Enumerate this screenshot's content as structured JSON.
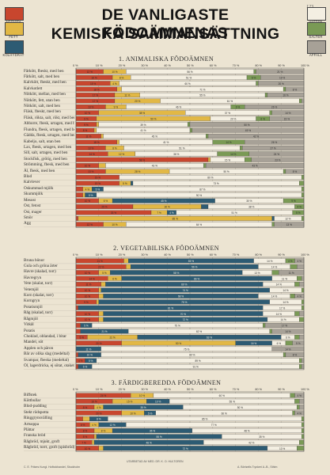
{
  "poster": {
    "title_line1": "DE VANLIGASTE FÖDOÄMNENAS",
    "title_line2": "KEMISKA SAMMANSÄTTNING",
    "stamp": "123",
    "legend": [
      {
        "label": "ÄGGVITA",
        "color": "#c8462e",
        "side": "left"
      },
      {
        "label": "FETT",
        "color": "#e2b845",
        "side": "left"
      },
      {
        "label": "KOLHYDRAT",
        "color": "#2d5b73",
        "side": "left"
      },
      {
        "label": "VATTEN",
        "color": "#f4efe2",
        "side": "right"
      },
      {
        "label": "SALTER",
        "color": "#7a9a55",
        "side": "right"
      },
      {
        "label": "AFFALL",
        "color": "#a7a197",
        "side": "right"
      }
    ],
    "footer_left": "C. E. Fritzes Kungl. Hofbokhandel, Stockholm",
    "footer_center": "UTARBETAD AV MED. DR. K. O. HULTGREN",
    "footer_right": "A. Börtzells Tryckeri A.-B., Sthlm"
  },
  "chart_data": {
    "type": "bar",
    "stacked": true,
    "xlim": [
      0,
      100
    ],
    "tick_labels": [
      "0 %",
      "10 %",
      "20 %",
      "30 %",
      "40 %",
      "50 %",
      "60 %",
      "70 %",
      "80 %",
      "90 %",
      "100 %"
    ],
    "series_order": [
      "ÄGGVITA",
      "FETT",
      "KOLHYDRAT",
      "VATTEN",
      "SALTER",
      "AFFALL"
    ],
    "sections": [
      {
        "title": "1. ANIMALISKA FÖDOÄMNEN",
        "rows": [
          {
            "label": "Fårkött, fbeskt, med ben",
            "values": [
              12,
              10,
              0,
              56,
              1,
              21
            ]
          },
          {
            "label": "Fårkött, salt, med ben",
            "values": [
              16,
              8,
              0,
              51,
              6,
              19
            ]
          },
          {
            "label": "Kalvkött, fbeskt, med ben",
            "values": [
              15,
              4,
              0,
              60,
              1,
              20
            ]
          },
          {
            "label": "Kalvkotlett",
            "values": [
              18,
              2,
              0,
              71,
              1,
              8
            ]
          },
          {
            "label": "Nötkött, mellan, med ben",
            "values": [
              17,
              11,
              0,
              55,
              1,
              16
            ]
          },
          {
            "label": "Nötkött, fett, utan ben",
            "values": [
              17,
              20,
              0,
              61,
              1,
              1
            ]
          },
          {
            "label": "Nötkött, salt, med ben",
            "values": [
              13,
              9,
              0,
              46,
              6,
              26
            ]
          },
          {
            "label": "Fläsk, fbeskt, med ben",
            "values": [
              10,
              38,
              0,
              37,
              1,
              14
            ]
          },
          {
            "label": "Fläsk, rökta, salt, rökt, med ben",
            "values": [
              9,
              50,
              0,
              20,
              6,
              15
            ]
          },
          {
            "label": "Abborre, fbesk, urtagen, med ben",
            "values": [
              9,
              1,
              0,
              39,
              1,
              50
            ]
          },
          {
            "label": "Flundra, fbesk, urtagen, med ben",
            "values": [
              8,
              1,
              0,
              41,
              1,
              49
            ]
          },
          {
            "label": "Gädda, fbesk, urtagen, med ben",
            "values": [
              11,
              1,
              0,
              45,
              1,
              42
            ]
          },
          {
            "label": "Kabeljo, salt, utan ben",
            "values": [
              18,
              1,
              0,
              41,
              14,
              26
            ]
          },
          {
            "label": "Lax, fbesk, urtagen, med ben",
            "values": [
              13,
              8,
              0,
              51,
              1,
              27
            ]
          },
          {
            "label": "Sill, salt, urtagen, med ben",
            "values": [
              14,
              12,
              0,
              36,
              14,
              24
            ]
          },
          {
            "label": "Stockfisk, grötig, med ben",
            "values": [
              58,
              1,
              0,
              15,
              3,
              23
            ]
          },
          {
            "label": "Strömming, fbesk, med ben",
            "values": [
              10,
              3,
              0,
              43,
              1,
              43
            ]
          },
          {
            "label": "Ål, fbesk, med ben",
            "values": [
              13,
              28,
              0,
              50,
              1,
              8
            ]
          },
          {
            "label": "Blod",
            "values": [
              19,
              0,
              0,
              80,
              1,
              0
            ]
          },
          {
            "label": "Kalvlever",
            "values": [
              19,
              5,
              1,
              73,
              2,
              0
            ]
          },
          {
            "label": "Oskummad mjölk",
            "values": [
              3,
              4,
              5,
              87,
              1,
              0
            ]
          },
          {
            "label": "Skummjölk",
            "values": [
              3,
              1,
              5,
              90,
              1,
              0
            ]
          },
          {
            "label": "Mesost",
            "values": [
              10,
              6,
              45,
              30,
              9,
              0
            ]
          },
          {
            "label": "Ost, fetost",
            "values": [
              25,
              30,
              3,
              38,
              4,
              0
            ]
          },
          {
            "label": "Ost, mager",
            "values": [
              33,
              7,
              4,
              51,
              5,
              0
            ]
          },
          {
            "label": "Smör",
            "values": [
              1,
              85,
              1,
              12,
              1,
              0
            ]
          },
          {
            "label": "Ägg",
            "values": [
              12,
              10,
              0,
              64,
              1,
              13
            ]
          }
        ]
      },
      {
        "title": "2. VEGETABILISKA FÖDOÄMNEN",
        "rows": [
          {
            "label": "Bruna bönor",
            "values": [
              21,
              2,
              55,
              14,
              4,
              4
            ]
          },
          {
            "label": "Gula och gröna ärter",
            "values": [
              22,
              2,
              56,
              14,
              3,
              3
            ]
          },
          {
            "label": "Havre (skalad, torr)",
            "values": [
              10,
              5,
              58,
              13,
              3,
              11
            ]
          },
          {
            "label": "Havregryn",
            "values": [
              14,
              6,
              66,
              11,
              2,
              1
            ]
          },
          {
            "label": "Vete (skalat, torr)",
            "values": [
              11,
              2,
              69,
              14,
              2,
              2
            ]
          },
          {
            "label": "Vetemjöl",
            "values": [
              10,
              1,
              74,
              14,
              1,
              0
            ]
          },
          {
            "label": "Korn (skalat, torr)",
            "values": [
              10,
              2,
              68,
              14,
              2,
              4
            ]
          },
          {
            "label": "Korngryn",
            "values": [
              9,
              1,
              75,
              14,
              1,
              0
            ]
          },
          {
            "label": "Potatismjöl",
            "values": [
              1,
              0,
              81,
              17,
              1,
              0
            ]
          },
          {
            "label": "Råg (skalad, torr)",
            "values": [
              10,
              2,
              70,
              14,
              2,
              2
            ]
          },
          {
            "label": "Rågmjöl",
            "values": [
              10,
              2,
              72,
              14,
              2,
              0
            ]
          },
          {
            "label": "Vitkål",
            "values": [
              2,
              0,
              5,
              75,
              1,
              17
            ]
          },
          {
            "label": "Potatis",
            "values": [
              2,
              0,
              21,
              62,
              1,
              14
            ]
          },
          {
            "label": "Choklad, oblandad, i bitar",
            "values": [
              5,
              22,
              63,
              6,
              2,
              2
            ]
          },
          {
            "label": "Mandel, söt",
            "values": [
              20,
              50,
              16,
              6,
              3,
              5
            ]
          },
          {
            "label": "Äpplen och päron",
            "values": [
              0,
              0,
              11,
              75,
              0,
              14
            ]
          },
          {
            "label": "Bär av olika slag (medeltal)",
            "values": [
              1,
              0,
              10,
              80,
              1,
              8
            ]
          },
          {
            "label": "Svampar, fbeska (medeltal)",
            "values": [
              4,
              0,
              5,
              89,
              1,
              1
            ]
          },
          {
            "label": "Öl, lagerdricka, ej sötat, otaket",
            "values": [
              1,
              0,
              6,
              91,
              1,
              1
            ]
          }
        ]
      },
      {
        "title": "3. FÄRDIGBEREDDA FÖDOÄMNEN",
        "rows": [
          {
            "label": "Biffstek",
            "values": [
              24,
              10,
              0,
              60,
              2,
              4
            ]
          },
          {
            "label": "Köttbullar",
            "values": [
              16,
              15,
              10,
              55,
              2,
              2
            ]
          },
          {
            "label": "Blod-pudding",
            "values": [
              8,
              4,
              35,
              50,
              1,
              2
            ]
          },
          {
            "label": "Stekt rödspotta",
            "values": [
              20,
              10,
              5,
              60,
              1,
              4
            ]
          },
          {
            "label": "Ringgrynsvälling",
            "values": [
              3,
              3,
              8,
              85,
              1,
              0
            ]
          },
          {
            "label": "Ärtsoppa",
            "values": [
              6,
              4,
              12,
              77,
              1,
              0
            ]
          },
          {
            "label": "Plättar",
            "values": [
              8,
              8,
              35,
              48,
              1,
              0
            ]
          },
          {
            "label": "Franska bröd",
            "values": [
              8,
              1,
              55,
              35,
              1,
              0
            ]
          },
          {
            "label": "Rågbröd, mjukt, groft",
            "values": [
              7,
              1,
              48,
              42,
              2,
              0
            ]
          },
          {
            "label": "Rågbröd, torrt, groft (spisbröd)",
            "values": [
              10,
              2,
              72,
              13,
              3,
              0
            ]
          }
        ]
      }
    ]
  }
}
